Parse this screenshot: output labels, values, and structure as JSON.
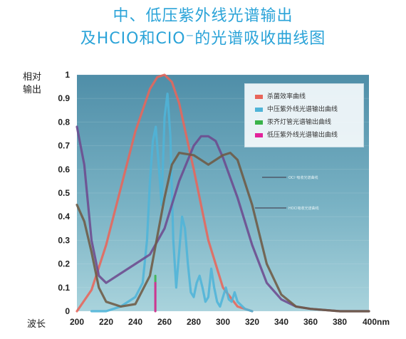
{
  "title_line1": "中、低压紫外线光谱输出",
  "title_line2": "及HCIO和CIO⁻的光谱吸收曲线图",
  "ylabel_line1": "相对",
  "ylabel_line2": "输出",
  "xlabel": "波长",
  "colors": {
    "background": "#5e9bb4",
    "title": "#2aa3d8",
    "germicidal": "#e8655a",
    "mp_uv": "#4fb4d8",
    "hg_lamp": "#3ab34a",
    "lp_uv": "#e2239b",
    "ocl_abs": "#6d4a8e",
    "hocl_abs": "#6e5a44"
  },
  "chart_data": {
    "type": "line",
    "xlabel": "波长",
    "ylabel": "相对输出",
    "xlim": [
      200,
      400
    ],
    "ylim": [
      0,
      1
    ],
    "x_ticks": [
      "200",
      "220",
      "240",
      "260",
      "280",
      "300",
      "320",
      "340",
      "360",
      "380",
      "400nm"
    ],
    "y_ticks": [
      "0",
      "0.1",
      "0.2",
      "0.3",
      "0.4",
      "0.5",
      "0.6",
      "0.7",
      "0.8",
      "0.9",
      "1"
    ],
    "legend_position": "top-right",
    "legend": [
      {
        "label": "杀菌效率曲线",
        "color": "#e8655a"
      },
      {
        "label": "中压紫外线光谱输出曲线",
        "color": "#4fb4d8"
      },
      {
        "label": "汞齐灯管光谱输出曲线",
        "color": "#3ab34a"
      },
      {
        "label": "低压紫外线光谱输出曲线",
        "color": "#e2239b"
      }
    ],
    "series": [
      {
        "name": "杀菌效率曲线",
        "color": "#e8655a",
        "x": [
          200,
          210,
          220,
          230,
          240,
          250,
          255,
          260,
          265,
          270,
          280,
          290,
          300,
          310,
          320
        ],
        "y": [
          0.0,
          0.09,
          0.28,
          0.52,
          0.76,
          0.94,
          0.99,
          1.0,
          0.97,
          0.88,
          0.6,
          0.3,
          0.1,
          0.02,
          0.0
        ]
      },
      {
        "name": "中压紫外线光谱输出曲线",
        "color": "#4fb4d8",
        "x": [
          210,
          220,
          230,
          240,
          245,
          248,
          250,
          252,
          254,
          256,
          258,
          260,
          262,
          264,
          266,
          268,
          270,
          272,
          274,
          276,
          278,
          280,
          282,
          284,
          286,
          288,
          290,
          292,
          294,
          296,
          298,
          300,
          302,
          304,
          306,
          308,
          310,
          315,
          320
        ],
        "y": [
          0.0,
          0.0,
          0.02,
          0.06,
          0.12,
          0.3,
          0.55,
          0.72,
          0.78,
          0.62,
          0.45,
          0.82,
          0.92,
          0.74,
          0.3,
          0.1,
          0.25,
          0.4,
          0.35,
          0.2,
          0.08,
          0.06,
          0.12,
          0.15,
          0.1,
          0.04,
          0.06,
          0.18,
          0.1,
          0.04,
          0.02,
          0.06,
          0.1,
          0.05,
          0.04,
          0.08,
          0.04,
          0.01,
          0.0
        ]
      },
      {
        "name": "汞齐灯管光谱输出曲线",
        "color": "#3ab34a",
        "x": [
          253.7,
          253.7
        ],
        "y": [
          0.0,
          0.15
        ]
      },
      {
        "name": "低压紫外线光谱输出曲线",
        "color": "#e2239b",
        "x": [
          253.7,
          253.7
        ],
        "y": [
          0.0,
          0.12
        ]
      },
      {
        "color": "#6d4a8e",
        "x": [
          200,
          205,
          210,
          215,
          220,
          230,
          240,
          250,
          260,
          270,
          280,
          285,
          290,
          295,
          300,
          310,
          320,
          330,
          340,
          350,
          360,
          380,
          400
        ],
        "y": [
          0.78,
          0.62,
          0.3,
          0.15,
          0.12,
          0.16,
          0.2,
          0.24,
          0.35,
          0.55,
          0.7,
          0.74,
          0.74,
          0.72,
          0.65,
          0.48,
          0.28,
          0.12,
          0.05,
          0.02,
          0.01,
          0.0,
          0.0
        ]
      },
      {
        "color": "#6e5a44",
        "x": [
          200,
          205,
          210,
          215,
          220,
          230,
          240,
          250,
          260,
          265,
          270,
          280,
          290,
          300,
          305,
          310,
          320,
          330,
          340,
          350,
          360,
          380,
          400
        ],
        "y": [
          0.45,
          0.38,
          0.25,
          0.1,
          0.04,
          0.02,
          0.03,
          0.15,
          0.48,
          0.62,
          0.67,
          0.66,
          0.62,
          0.66,
          0.67,
          0.64,
          0.45,
          0.2,
          0.07,
          0.02,
          0.01,
          0.0,
          0.0
        ]
      }
    ],
    "annotations": [
      "OCl⁻吸收光谱曲线",
      "HOCl吸收光谱曲线"
    ]
  }
}
